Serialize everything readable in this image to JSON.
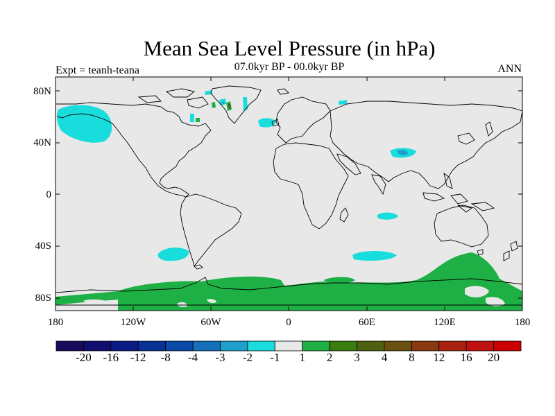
{
  "map": {
    "title": "Mean Sea Level Pressure (in hPa)",
    "subtitle": "07.0kyr BP - 00.0kyr BP",
    "left_label": "Expt = teanh-teana",
    "right_label": "ANN",
    "lat_ticks": [
      "80N",
      "40N",
      "0",
      "40S",
      "80S"
    ],
    "lon_ticks": [
      "180",
      "120W",
      "60W",
      "0",
      "60E",
      "120E",
      "180"
    ],
    "background_color": "#e8e8e8",
    "coastline_color": "#000000"
  },
  "colorbar": {
    "labels": [
      "-20",
      "-16",
      "-12",
      "-8",
      "-4",
      "-3",
      "-2",
      "-1",
      "1",
      "2",
      "3",
      "4",
      "8",
      "12",
      "16",
      "20"
    ],
    "colors": [
      "#1a0a5c",
      "#100e70",
      "#0a1c84",
      "#0a3296",
      "#0a4aa8",
      "#1470b8",
      "#1fa0cc",
      "#19dcdc",
      "#e8e8e8",
      "#1eb044",
      "#3a7d10",
      "#4f6010",
      "#6a5010",
      "#8a3a10",
      "#a82010",
      "#c01010",
      "#cc0000"
    ]
  }
}
